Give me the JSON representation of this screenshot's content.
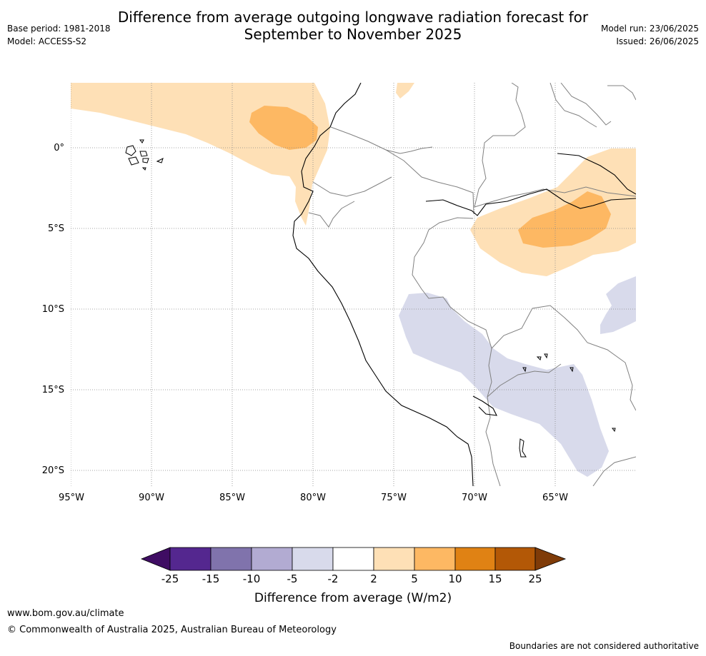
{
  "title_line1": "Difference from average outgoing longwave radiation forecast for",
  "title_line2": "September to November 2025",
  "meta_left": {
    "base_period": "Base period: 1981-2018",
    "model": "Model: ACCESS-S2"
  },
  "meta_right": {
    "model_run": "Model run: 23/06/2025",
    "issued": "Issued: 26/06/2025"
  },
  "map": {
    "lat_labels": [
      "0°",
      "5°S",
      "10°S",
      "15°S",
      "20°S"
    ],
    "lon_labels": [
      "95°W",
      "90°W",
      "85°W",
      "80°W",
      "75°W",
      "70°W",
      "65°W"
    ]
  },
  "colorbar": {
    "label": "Difference from average (W/m2)",
    "ticks": [
      "-25",
      "-15",
      "-10",
      "-5",
      "-2",
      "2",
      "5",
      "10",
      "15",
      "25"
    ],
    "colors": [
      "#3f0d63",
      "#54278f",
      "#8073ac",
      "#b2abd2",
      "#d8daeb",
      "#ffffff",
      "#fee0b6",
      "#fdb863",
      "#e08214",
      "#b35806",
      "#7f3b08"
    ]
  },
  "footer": {
    "url": "www.bom.gov.au/climate",
    "copyright": "© Commonwealth of Australia 2025, Australian Bureau of Meteorology",
    "disclaimer": "Boundaries are not considered authoritative"
  }
}
